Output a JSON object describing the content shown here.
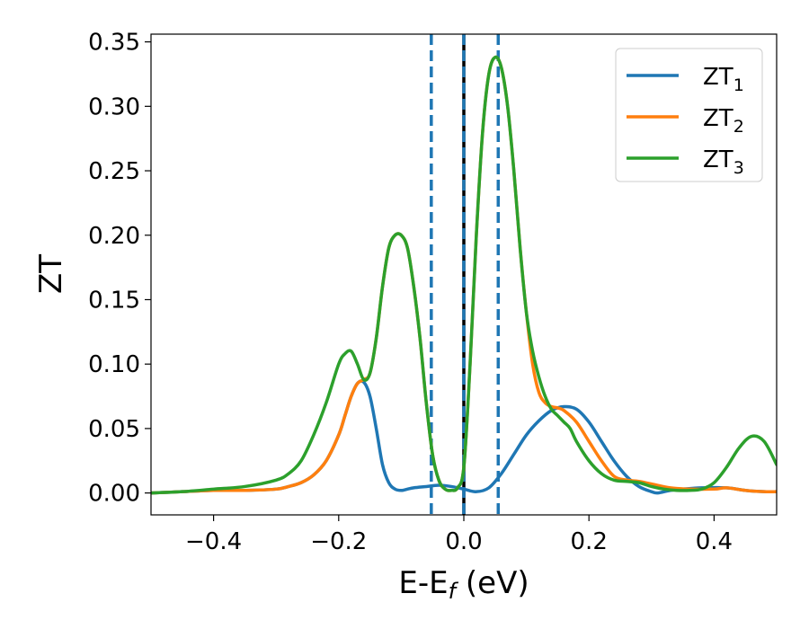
{
  "chart_data": {
    "type": "line",
    "xlabel": "E-E",
    "xlabel_sub": "f",
    "xlabel_unit": " (eV)",
    "ylabel": "ZT",
    "xlim": [
      -0.5,
      0.5
    ],
    "ylim": [
      -0.017,
      0.356
    ],
    "x_ticks": [
      -0.4,
      -0.2,
      0.0,
      0.2,
      0.4
    ],
    "x_tick_labels": [
      "−0.4",
      "−0.2",
      "0.0",
      "0.2",
      "0.4"
    ],
    "y_ticks": [
      0.0,
      0.05,
      0.1,
      0.15,
      0.2,
      0.25,
      0.3,
      0.35
    ],
    "y_tick_labels": [
      "0.00",
      "0.05",
      "0.10",
      "0.15",
      "0.20",
      "0.25",
      "0.30",
      "0.35"
    ],
    "grid": false,
    "legend_position": "top-right",
    "vlines": [
      {
        "x": -0.052,
        "color": "#1f77b4",
        "style": "dashed"
      },
      {
        "x": 0.0,
        "color": "#000000",
        "style": "solid"
      },
      {
        "x": 0.0,
        "color": "#1f77b4",
        "style": "dashed"
      },
      {
        "x": 0.055,
        "color": "#1f77b4",
        "style": "dashed"
      }
    ],
    "series": [
      {
        "name": "ZT",
        "name_sub": "1",
        "color": "#1f77b4",
        "x": [
          -0.5,
          -0.45,
          -0.4,
          -0.35,
          -0.3,
          -0.28,
          -0.26,
          -0.24,
          -0.22,
          -0.2,
          -0.19,
          -0.18,
          -0.17,
          -0.16,
          -0.15,
          -0.14,
          -0.13,
          -0.12,
          -0.11,
          -0.1,
          -0.09,
          -0.08,
          -0.06,
          -0.04,
          -0.02,
          0.0,
          0.02,
          0.04,
          0.06,
          0.08,
          0.1,
          0.12,
          0.14,
          0.16,
          0.18,
          0.2,
          0.22,
          0.24,
          0.26,
          0.28,
          0.3,
          0.31,
          0.33,
          0.35,
          0.38,
          0.42,
          0.45,
          0.48,
          0.5
        ],
        "y": [
          0.0,
          0.001,
          0.002,
          0.002,
          0.003,
          0.005,
          0.008,
          0.014,
          0.025,
          0.045,
          0.06,
          0.075,
          0.085,
          0.086,
          0.075,
          0.05,
          0.022,
          0.008,
          0.003,
          0.002,
          0.003,
          0.004,
          0.005,
          0.006,
          0.005,
          0.003,
          0.001,
          0.004,
          0.015,
          0.03,
          0.045,
          0.056,
          0.064,
          0.067,
          0.065,
          0.055,
          0.04,
          0.025,
          0.013,
          0.005,
          0.001,
          0.0,
          0.002,
          0.003,
          0.004,
          0.004,
          0.002,
          0.001,
          0.001
        ]
      },
      {
        "name": "ZT",
        "name_sub": "2",
        "color": "#ff7f0e",
        "x": [
          -0.5,
          -0.45,
          -0.4,
          -0.35,
          -0.3,
          -0.28,
          -0.26,
          -0.24,
          -0.22,
          -0.2,
          -0.19,
          -0.18,
          -0.17,
          -0.16,
          -0.15,
          -0.14,
          -0.13,
          -0.12,
          -0.11,
          -0.1,
          -0.09,
          -0.08,
          -0.07,
          -0.06,
          -0.05,
          -0.04,
          -0.03,
          -0.02,
          -0.01,
          0.0,
          0.01,
          0.02,
          0.03,
          0.04,
          0.05,
          0.06,
          0.07,
          0.08,
          0.09,
          0.1,
          0.11,
          0.12,
          0.13,
          0.14,
          0.15,
          0.16,
          0.18,
          0.2,
          0.22,
          0.24,
          0.26,
          0.28,
          0.3,
          0.33,
          0.36,
          0.4,
          0.42,
          0.45,
          0.48,
          0.5
        ],
        "y": [
          0.0,
          0.001,
          0.002,
          0.002,
          0.003,
          0.005,
          0.008,
          0.014,
          0.025,
          0.045,
          0.06,
          0.075,
          0.085,
          0.088,
          0.093,
          0.12,
          0.16,
          0.19,
          0.2,
          0.2,
          0.19,
          0.16,
          0.12,
          0.07,
          0.03,
          0.01,
          0.003,
          0.002,
          0.004,
          0.02,
          0.1,
          0.2,
          0.28,
          0.325,
          0.338,
          0.33,
          0.3,
          0.25,
          0.19,
          0.14,
          0.1,
          0.078,
          0.07,
          0.067,
          0.066,
          0.064,
          0.055,
          0.04,
          0.025,
          0.013,
          0.01,
          0.009,
          0.007,
          0.004,
          0.003,
          0.003,
          0.004,
          0.002,
          0.001,
          0.001
        ]
      },
      {
        "name": "ZT",
        "name_sub": "3",
        "color": "#2ca02c",
        "x": [
          -0.5,
          -0.45,
          -0.4,
          -0.35,
          -0.3,
          -0.28,
          -0.26,
          -0.24,
          -0.22,
          -0.2,
          -0.19,
          -0.18,
          -0.17,
          -0.16,
          -0.15,
          -0.14,
          -0.13,
          -0.12,
          -0.11,
          -0.1,
          -0.09,
          -0.08,
          -0.07,
          -0.06,
          -0.05,
          -0.04,
          -0.03,
          -0.02,
          -0.01,
          0.0,
          0.01,
          0.02,
          0.03,
          0.04,
          0.05,
          0.06,
          0.07,
          0.08,
          0.09,
          0.1,
          0.11,
          0.12,
          0.13,
          0.14,
          0.15,
          0.16,
          0.17,
          0.18,
          0.2,
          0.22,
          0.24,
          0.26,
          0.28,
          0.3,
          0.32,
          0.34,
          0.36,
          0.38,
          0.4,
          0.42,
          0.44,
          0.46,
          0.48,
          0.5
        ],
        "y": [
          0.0,
          0.001,
          0.003,
          0.005,
          0.01,
          0.015,
          0.025,
          0.045,
          0.07,
          0.1,
          0.108,
          0.11,
          0.1,
          0.088,
          0.093,
          0.12,
          0.16,
          0.19,
          0.2,
          0.2,
          0.19,
          0.16,
          0.12,
          0.07,
          0.03,
          0.01,
          0.003,
          0.002,
          0.004,
          0.02,
          0.1,
          0.2,
          0.28,
          0.325,
          0.338,
          0.33,
          0.3,
          0.25,
          0.19,
          0.14,
          0.11,
          0.09,
          0.075,
          0.065,
          0.06,
          0.055,
          0.05,
          0.04,
          0.025,
          0.015,
          0.01,
          0.009,
          0.008,
          0.005,
          0.003,
          0.002,
          0.002,
          0.003,
          0.008,
          0.02,
          0.035,
          0.044,
          0.04,
          0.022
        ]
      }
    ]
  }
}
